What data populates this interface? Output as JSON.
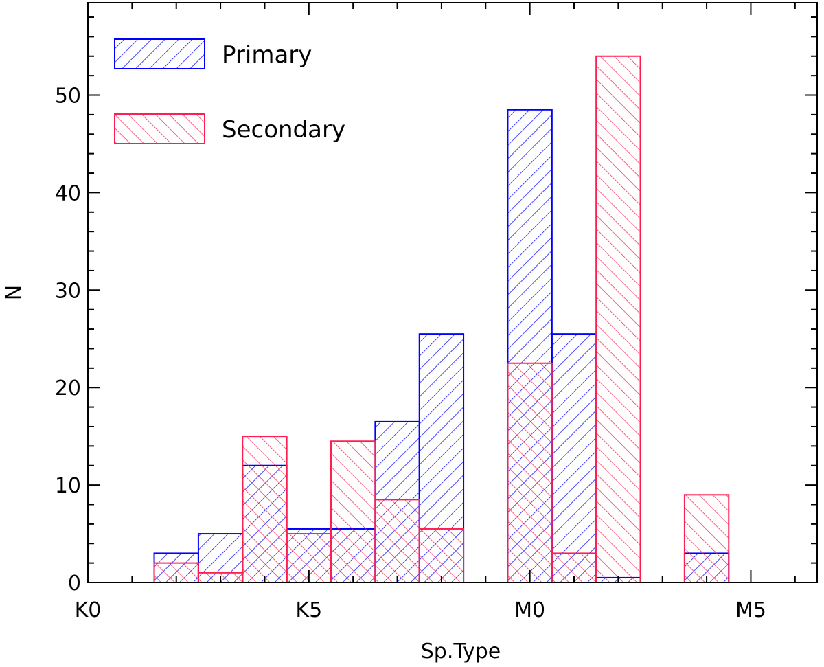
{
  "chart_data": {
    "type": "bar",
    "subtype": "step-histogram",
    "title": "",
    "xlabel": "Sp.Type",
    "ylabel": "N",
    "xlim": [
      0,
      16.5
    ],
    "ylim": [
      0,
      58
    ],
    "bin_width": 1,
    "x_ticks": [
      {
        "value": 0,
        "label": "K0"
      },
      {
        "value": 5,
        "label": "K5"
      },
      {
        "value": 10,
        "label": "M0"
      },
      {
        "value": 15,
        "label": "M5"
      }
    ],
    "y_ticks": [
      0,
      10,
      20,
      30,
      40,
      50
    ],
    "bin_centers": [
      1,
      2,
      3,
      4,
      5,
      6,
      7,
      8,
      9,
      10,
      11,
      12,
      13,
      14,
      15
    ],
    "series": [
      {
        "name": "Primary",
        "color": "#0000ff",
        "hatch": "diagonal-up",
        "values": [
          0,
          3,
          5,
          12,
          5.5,
          5.5,
          16.5,
          25.5,
          0,
          48.5,
          25.5,
          0.5,
          0,
          3,
          0
        ]
      },
      {
        "name": "Secondary",
        "color": "#ff1e50",
        "hatch": "diagonal-down",
        "values": [
          0,
          2,
          1,
          15,
          5,
          14.5,
          8.5,
          5.5,
          0,
          22.5,
          3,
          54,
          0,
          9,
          0
        ]
      }
    ],
    "legend": {
      "position": "top-left",
      "entries": [
        "Primary",
        "Secondary"
      ]
    },
    "grid": false
  }
}
